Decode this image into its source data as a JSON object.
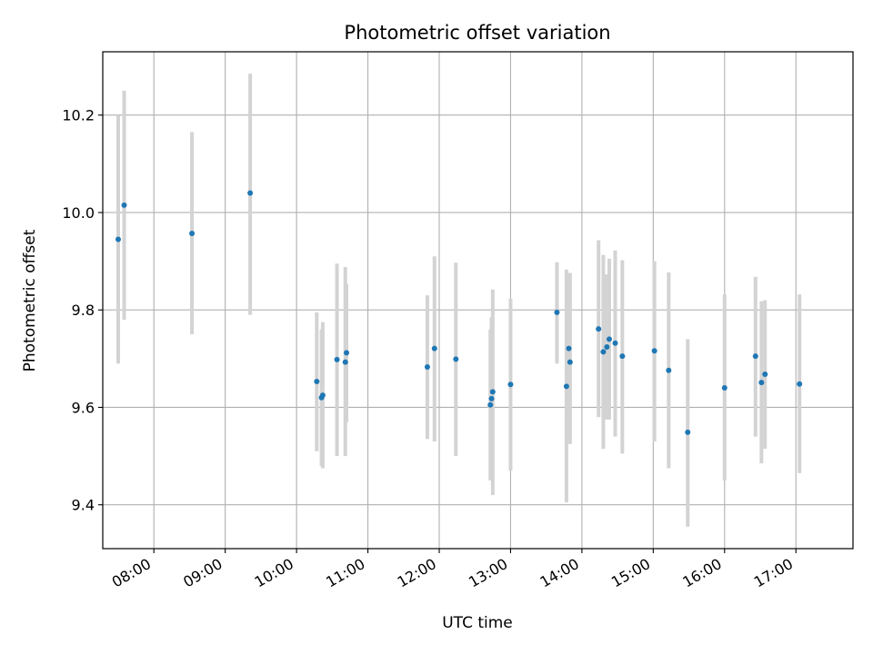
{
  "chart_data": {
    "type": "scatter",
    "title": "Photometric offset variation",
    "xlabel": "UTC time",
    "ylabel": "Photometric offset",
    "x_ticks": [
      "08:00",
      "09:00",
      "10:00",
      "11:00",
      "12:00",
      "13:00",
      "14:00",
      "15:00",
      "16:00",
      "17:00"
    ],
    "y_ticks": [
      "9.4",
      "9.6",
      "9.8",
      "10.0",
      "10.2"
    ],
    "xlim": [
      "07:17",
      "17:48"
    ],
    "ylim": [
      9.31,
      10.33
    ],
    "grid": true,
    "colors": {
      "point": "#1f77b4",
      "errorbar": "#d3d3d3",
      "grid": "#b0b0b0"
    },
    "points": [
      {
        "x": "07:30",
        "y": 9.945,
        "lo": 9.69,
        "hi": 10.2
      },
      {
        "x": "07:35",
        "y": 10.015,
        "lo": 9.78,
        "hi": 10.25
      },
      {
        "x": "08:32",
        "y": 9.957,
        "lo": 9.75,
        "hi": 10.165
      },
      {
        "x": "09:21",
        "y": 10.04,
        "lo": 9.79,
        "hi": 10.285
      },
      {
        "x": "10:17",
        "y": 9.653,
        "lo": 9.51,
        "hi": 9.795
      },
      {
        "x": "10:21",
        "y": 9.62,
        "lo": 9.48,
        "hi": 9.76
      },
      {
        "x": "10:22",
        "y": 9.625,
        "lo": 9.475,
        "hi": 9.775
      },
      {
        "x": "10:34",
        "y": 9.698,
        "lo": 9.5,
        "hi": 9.895
      },
      {
        "x": "10:41",
        "y": 9.693,
        "lo": 9.5,
        "hi": 9.888
      },
      {
        "x": "10:42",
        "y": 9.712,
        "lo": 9.57,
        "hi": 9.853
      },
      {
        "x": "11:50",
        "y": 9.683,
        "lo": 9.535,
        "hi": 9.83
      },
      {
        "x": "11:56",
        "y": 9.721,
        "lo": 9.53,
        "hi": 9.91
      },
      {
        "x": "12:14",
        "y": 9.699,
        "lo": 9.5,
        "hi": 9.897
      },
      {
        "x": "12:43",
        "y": 9.605,
        "lo": 9.45,
        "hi": 9.76
      },
      {
        "x": "12:44",
        "y": 9.618,
        "lo": 9.46,
        "hi": 9.785
      },
      {
        "x": "12:45",
        "y": 9.632,
        "lo": 9.42,
        "hi": 9.842
      },
      {
        "x": "13:00",
        "y": 9.647,
        "lo": 9.47,
        "hi": 9.823
      },
      {
        "x": "13:39",
        "y": 9.795,
        "lo": 9.69,
        "hi": 9.898
      },
      {
        "x": "13:47",
        "y": 9.643,
        "lo": 9.405,
        "hi": 9.883
      },
      {
        "x": "13:49",
        "y": 9.721,
        "lo": 9.575,
        "hi": 9.867
      },
      {
        "x": "13:50",
        "y": 9.693,
        "lo": 9.525,
        "hi": 9.876
      },
      {
        "x": "14:14",
        "y": 9.761,
        "lo": 9.58,
        "hi": 9.943
      },
      {
        "x": "14:18",
        "y": 9.714,
        "lo": 9.515,
        "hi": 9.913
      },
      {
        "x": "14:21",
        "y": 9.724,
        "lo": 9.575,
        "hi": 9.873
      },
      {
        "x": "14:23",
        "y": 9.74,
        "lo": 9.575,
        "hi": 9.905
      },
      {
        "x": "14:28",
        "y": 9.732,
        "lo": 9.54,
        "hi": 9.922
      },
      {
        "x": "14:34",
        "y": 9.705,
        "lo": 9.505,
        "hi": 9.902
      },
      {
        "x": "15:01",
        "y": 9.716,
        "lo": 9.53,
        "hi": 9.9
      },
      {
        "x": "15:13",
        "y": 9.676,
        "lo": 9.475,
        "hi": 9.877
      },
      {
        "x": "15:29",
        "y": 9.549,
        "lo": 9.355,
        "hi": 9.74
      },
      {
        "x": "16:00",
        "y": 9.64,
        "lo": 9.45,
        "hi": 9.832
      },
      {
        "x": "16:26",
        "y": 9.705,
        "lo": 9.54,
        "hi": 9.868
      },
      {
        "x": "16:31",
        "y": 9.651,
        "lo": 9.485,
        "hi": 9.818
      },
      {
        "x": "16:34",
        "y": 9.668,
        "lo": 9.515,
        "hi": 9.82
      },
      {
        "x": "17:03",
        "y": 9.648,
        "lo": 9.465,
        "hi": 9.832
      }
    ]
  }
}
